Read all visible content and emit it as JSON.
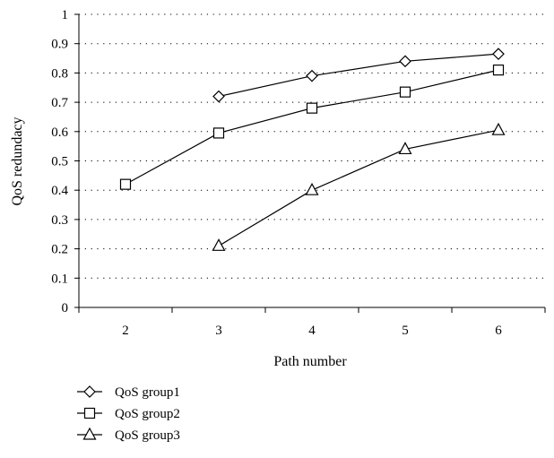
{
  "chart_data": {
    "type": "line",
    "title": "",
    "xlabel": "Path number",
    "ylabel": "QoS redundacy",
    "categories": [
      "2",
      "3",
      "4",
      "5",
      "6"
    ],
    "ylim": [
      0,
      1
    ],
    "yticks": [
      "0",
      "0.1",
      "0.2",
      "0.3",
      "0.4",
      "0.5",
      "0.6",
      "0.7",
      "0.8",
      "0.9",
      "1"
    ],
    "grid": "horizontal dotted",
    "legend_position": "bottom-left",
    "series": [
      {
        "name": "QoS group1",
        "marker": "diamond",
        "x": [
          3,
          4,
          5,
          6
        ],
        "values": [
          0.72,
          0.79,
          0.84,
          0.865
        ]
      },
      {
        "name": "QoS group2",
        "marker": "square",
        "x": [
          2,
          3,
          4,
          5,
          6
        ],
        "values": [
          0.42,
          0.595,
          0.68,
          0.735,
          0.81
        ]
      },
      {
        "name": "QoS group3",
        "marker": "triangle",
        "x": [
          3,
          4,
          5,
          6
        ],
        "values": [
          0.21,
          0.4,
          0.54,
          0.605
        ]
      }
    ]
  }
}
